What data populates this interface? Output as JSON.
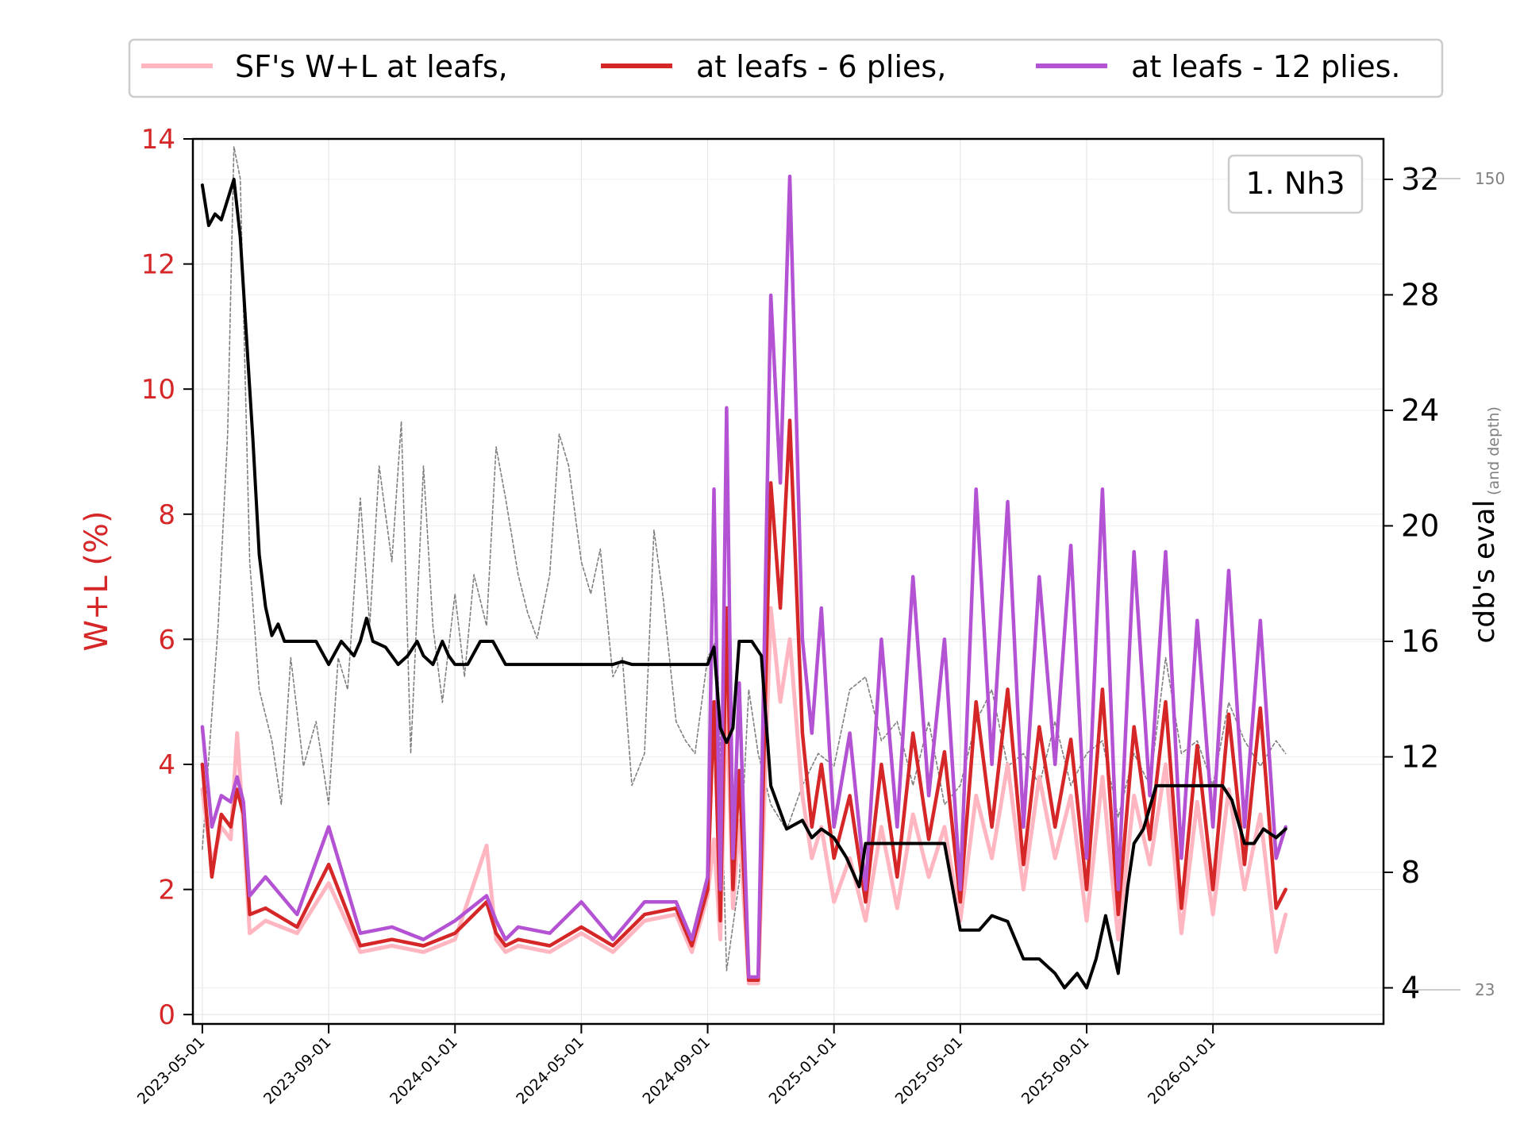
{
  "chart_data": {
    "type": "line",
    "title": "",
    "annotation": "1. Nh3",
    "legend": {
      "placement": "top-center",
      "entries": [
        {
          "label": "SF's W+L at leafs,",
          "color": "#ffb6c1"
        },
        {
          "label": "at leafs - 6 plies,",
          "color": "#d62728"
        },
        {
          "label": "at leafs - 12 plies.",
          "color": "#b452d4"
        }
      ]
    },
    "left_axis": {
      "label": "W+L (%)",
      "color": "#d62728",
      "ylim": [
        -0.15,
        14
      ],
      "ticks": [
        0,
        2,
        4,
        6,
        8,
        10,
        12,
        14
      ],
      "tick_labels": [
        "0",
        "2",
        "4",
        "6",
        "8",
        "10",
        "12",
        "14"
      ]
    },
    "right_axis": {
      "label": "cdb's eval",
      "sublabel": "(and depth)",
      "ylim": [
        2.75,
        33.4
      ],
      "ticks": [
        4,
        8,
        12,
        16,
        20,
        24,
        28,
        32
      ],
      "tick_labels": [
        "4",
        "8",
        "12",
        "16",
        "20",
        "24",
        "28",
        "32"
      ]
    },
    "depth_axis": {
      "ticks": [
        23,
        150
      ],
      "tick_labels": [
        "23",
        "150"
      ]
    },
    "x_axis": {
      "range_months": [
        -0.3,
        37.4
      ],
      "ticks": [
        0,
        4,
        8,
        12,
        16,
        20,
        24,
        28,
        32
      ],
      "tick_labels": [
        "2023-05-01",
        "2023-09-01",
        "2024-01-01",
        "2024-05-01",
        "2024-09-01",
        "2025-01-01",
        "2025-05-01",
        "2025-09-01",
        "2026-01-01"
      ]
    },
    "grid": true,
    "series": [
      {
        "name": "SF's W+L at leafs",
        "axis": "left",
        "color": "#ffb6c1",
        "x": [
          0,
          0.3,
          0.6,
          0.9,
          1.1,
          1.3,
          1.5,
          2,
          3,
          4,
          5,
          6,
          7,
          8,
          9,
          9.3,
          9.6,
          10,
          11,
          12,
          13,
          14,
          15,
          15.5,
          16,
          16.2,
          16.4,
          16.6,
          16.8,
          17,
          17.3,
          17.6,
          18,
          18.3,
          18.6,
          19,
          19.3,
          19.6,
          20,
          20.5,
          21,
          21.5,
          22,
          22.5,
          23,
          23.5,
          24,
          24.5,
          25,
          25.5,
          26,
          26.5,
          27,
          27.5,
          28,
          28.5,
          29,
          29.5,
          30,
          30.5,
          31,
          31.5,
          32,
          32.5,
          33,
          33.5,
          34,
          34.3
        ],
        "values": [
          3.6,
          2.4,
          3.0,
          2.8,
          4.5,
          3.0,
          1.3,
          1.5,
          1.3,
          2.1,
          1.0,
          1.1,
          1.0,
          1.2,
          2.7,
          1.2,
          1.0,
          1.1,
          1.0,
          1.3,
          1.0,
          1.5,
          1.6,
          1.0,
          1.9,
          2.8,
          1.2,
          5.2,
          1.7,
          3.1,
          0.5,
          0.5,
          6.5,
          5.0,
          6.0,
          3.5,
          2.5,
          3.0,
          1.8,
          2.5,
          1.5,
          3.0,
          1.7,
          3.2,
          2.2,
          3.0,
          1.5,
          3.5,
          2.5,
          4.0,
          2.0,
          3.8,
          2.5,
          3.5,
          1.5,
          3.8,
          1.2,
          3.5,
          2.4,
          4.0,
          1.3,
          3.4,
          1.6,
          3.6,
          2.0,
          3.2,
          1.0,
          1.6
        ]
      },
      {
        "name": "at leafs - 6 plies",
        "axis": "left",
        "color": "#d62728",
        "x": [
          0,
          0.3,
          0.6,
          0.9,
          1.1,
          1.3,
          1.5,
          2,
          3,
          4,
          5,
          6,
          7,
          8,
          9,
          9.3,
          9.6,
          10,
          11,
          12,
          13,
          14,
          15,
          15.5,
          16,
          16.2,
          16.4,
          16.6,
          16.8,
          17,
          17.3,
          17.6,
          18,
          18.3,
          18.6,
          19,
          19.3,
          19.6,
          20,
          20.5,
          21,
          21.5,
          22,
          22.5,
          23,
          23.5,
          24,
          24.5,
          25,
          25.5,
          26,
          26.5,
          27,
          27.5,
          28,
          28.5,
          29,
          29.5,
          30,
          30.5,
          31,
          31.5,
          32,
          32.5,
          33,
          33.5,
          34,
          34.3
        ],
        "values": [
          4.0,
          2.2,
          3.2,
          3.0,
          3.6,
          3.2,
          1.6,
          1.7,
          1.4,
          2.4,
          1.1,
          1.2,
          1.1,
          1.3,
          1.8,
          1.3,
          1.1,
          1.2,
          1.1,
          1.4,
          1.1,
          1.6,
          1.7,
          1.1,
          2.0,
          5.0,
          1.5,
          6.5,
          2.0,
          3.9,
          0.55,
          0.55,
          8.5,
          6.5,
          9.5,
          4.5,
          3.0,
          4.0,
          2.5,
          3.5,
          1.8,
          4.0,
          2.2,
          4.5,
          2.8,
          4.2,
          1.8,
          5.0,
          3.0,
          5.2,
          2.4,
          4.6,
          3.0,
          4.4,
          2.0,
          5.2,
          1.6,
          4.6,
          2.8,
          5.0,
          1.7,
          4.3,
          2.0,
          4.8,
          2.4,
          4.9,
          1.7,
          2.0
        ]
      },
      {
        "name": "at leafs - 12 plies",
        "axis": "left",
        "color": "#b452d4",
        "x": [
          0,
          0.3,
          0.6,
          0.9,
          1.1,
          1.3,
          1.5,
          2,
          3,
          4,
          5,
          6,
          7,
          8,
          9,
          9.3,
          9.6,
          10,
          11,
          12,
          13,
          14,
          15,
          15.5,
          16,
          16.2,
          16.4,
          16.6,
          16.8,
          17,
          17.3,
          17.6,
          18,
          18.3,
          18.6,
          19,
          19.3,
          19.6,
          20,
          20.5,
          21,
          21.5,
          22,
          22.5,
          23,
          23.5,
          24,
          24.5,
          25,
          25.5,
          26,
          26.5,
          27,
          27.5,
          28,
          28.5,
          29,
          29.5,
          30,
          30.5,
          31,
          31.5,
          32,
          32.5,
          33,
          33.5,
          34,
          34.3
        ],
        "values": [
          4.6,
          3.0,
          3.5,
          3.4,
          3.8,
          3.4,
          1.9,
          2.2,
          1.6,
          3.0,
          1.3,
          1.4,
          1.2,
          1.5,
          1.9,
          1.5,
          1.2,
          1.4,
          1.3,
          1.8,
          1.2,
          1.8,
          1.8,
          1.2,
          2.2,
          8.4,
          2.0,
          9.7,
          2.5,
          5.3,
          0.6,
          0.6,
          11.5,
          8.5,
          13.4,
          6.0,
          4.5,
          6.5,
          3.0,
          4.5,
          2.0,
          6.0,
          3.0,
          7.0,
          3.5,
          6.0,
          2.0,
          8.4,
          4.0,
          8.2,
          3.0,
          7.0,
          4.0,
          7.5,
          2.5,
          8.4,
          2.0,
          7.4,
          3.5,
          7.4,
          2.5,
          6.3,
          3.0,
          7.1,
          3.0,
          6.3,
          2.5,
          3.0
        ]
      },
      {
        "name": "cdb's eval",
        "axis": "right",
        "color": "#000000",
        "x": [
          0,
          0.2,
          0.4,
          0.6,
          0.8,
          1.0,
          1.2,
          1.4,
          1.6,
          1.8,
          2.0,
          2.2,
          2.4,
          2.6,
          2.8,
          3.0,
          3.2,
          3.6,
          4.0,
          4.4,
          4.8,
          5.0,
          5.2,
          5.4,
          5.8,
          6.2,
          6.5,
          6.8,
          7.0,
          7.3,
          7.6,
          7.8,
          8.0,
          8.4,
          8.8,
          9.2,
          9.6,
          10.0,
          10.5,
          11.0,
          11.5,
          12.0,
          13.0,
          13.3,
          13.6,
          14.0,
          15.0,
          15.3,
          15.6,
          16.0,
          16.2,
          16.4,
          16.6,
          16.8,
          17.0,
          17.4,
          17.7,
          18.0,
          18.5,
          19.0,
          19.3,
          19.6,
          20.0,
          20.4,
          20.8,
          21.0,
          21.3,
          21.6,
          22.0,
          22.5,
          23.0,
          23.5,
          24.0,
          24.3,
          24.6,
          25.0,
          25.5,
          26.0,
          26.5,
          27.0,
          27.3,
          27.7,
          28.0,
          28.3,
          28.6,
          29.0,
          29.3,
          29.5,
          29.8,
          30.2,
          30.6,
          31.0,
          31.5,
          32.0,
          32.3,
          32.6,
          33.0,
          33.3,
          33.6,
          34.0,
          34.3
        ],
        "values": [
          31.8,
          30.4,
          30.8,
          30.6,
          31.3,
          32.0,
          30.0,
          26.5,
          23.0,
          19.0,
          17.2,
          16.2,
          16.6,
          16.0,
          16.0,
          16.0,
          16.0,
          16.0,
          15.2,
          16.0,
          15.5,
          16.0,
          16.8,
          16.0,
          15.8,
          15.2,
          15.5,
          16.0,
          15.5,
          15.2,
          16.0,
          15.5,
          15.2,
          15.2,
          16.0,
          16.0,
          15.2,
          15.2,
          15.2,
          15.2,
          15.2,
          15.2,
          15.2,
          15.3,
          15.2,
          15.2,
          15.2,
          15.2,
          15.2,
          15.2,
          15.8,
          13.0,
          12.5,
          13.0,
          16.0,
          16.0,
          15.5,
          11.0,
          9.5,
          9.8,
          9.2,
          9.5,
          9.2,
          8.5,
          7.5,
          9.0,
          9.0,
          9.0,
          9.0,
          9.0,
          9.0,
          9.0,
          6.0,
          6.0,
          6.0,
          6.5,
          6.3,
          5.0,
          5.0,
          4.5,
          4.0,
          4.5,
          4.0,
          5.0,
          6.5,
          4.5,
          7.5,
          9.0,
          9.5,
          11.0,
          11.0,
          11.0,
          11.0,
          11.0,
          11.0,
          10.5,
          9.0,
          9.0,
          9.5,
          9.2,
          9.5
        ]
      },
      {
        "name": "depth",
        "axis": "depth",
        "color": "#808080",
        "style": "dashed",
        "x": [
          0,
          0.5,
          0.8,
          1.0,
          1.2,
          1.5,
          1.8,
          2.2,
          2.5,
          2.8,
          3.2,
          3.6,
          4.0,
          4.3,
          4.6,
          5.0,
          5.3,
          5.6,
          6.0,
          6.3,
          6.6,
          7.0,
          7.3,
          7.6,
          8.0,
          8.3,
          8.6,
          9.0,
          9.3,
          9.6,
          10.0,
          10.3,
          10.6,
          11.0,
          11.3,
          11.6,
          12.0,
          12.3,
          12.6,
          13.0,
          13.3,
          13.6,
          14.0,
          14.3,
          14.6,
          15.0,
          15.3,
          15.6,
          16.0,
          16.3,
          16.6,
          17.0,
          17.3,
          17.6,
          18.0,
          18.5,
          19.0,
          19.5,
          20.0,
          20.5,
          21.0,
          21.5,
          22.0,
          22.5,
          23.0,
          23.5,
          24.0,
          24.5,
          25.0,
          25.5,
          26.0,
          26.5,
          27.0,
          27.5,
          28.0,
          28.5,
          29.0,
          29.5,
          30.0,
          30.5,
          31.0,
          31.5,
          32.0,
          32.5,
          33.0,
          33.5,
          34.0,
          34.3
        ],
        "values": [
          45,
          80,
          110,
          155,
          150,
          90,
          70,
          62,
          52,
          75,
          58,
          65,
          52,
          75,
          70,
          100,
          80,
          105,
          90,
          112,
          60,
          105,
          80,
          68,
          85,
          72,
          88,
          80,
          108,
          100,
          88,
          82,
          78,
          88,
          110,
          105,
          90,
          85,
          92,
          72,
          75,
          55,
          60,
          95,
          84,
          65,
          62,
          60,
          75,
          78,
          26,
          40,
          70,
          60,
          52,
          48,
          55,
          60,
          58,
          70,
          72,
          62,
          65,
          55,
          65,
          52,
          55,
          65,
          70,
          58,
          60,
          55,
          65,
          55,
          60,
          62,
          50,
          60,
          55,
          75,
          60,
          62,
          55,
          68,
          62,
          58,
          62,
          60
        ]
      }
    ]
  }
}
